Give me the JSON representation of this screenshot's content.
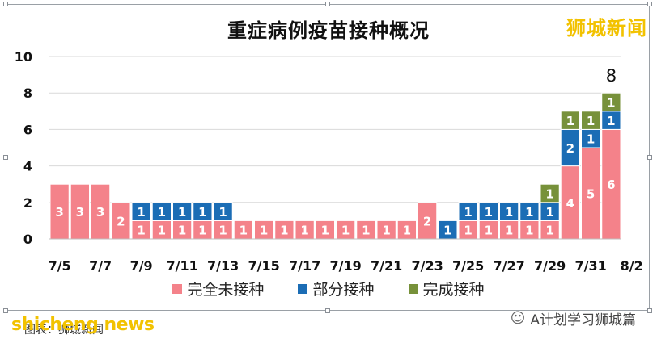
{
  "header": {
    "title": "重症病例疫苗接种概况",
    "brand": "狮城新闻"
  },
  "footer": {
    "brand_latin": "shicheng news",
    "caption": "图表：狮城新闻",
    "wechat": "A计划学习狮城篇"
  },
  "colors": {
    "unvaccinated": "#f4828a",
    "partial": "#1b6db5",
    "full": "#77913a"
  },
  "chart_data": {
    "type": "bar",
    "stacked": true,
    "title": "重症病例疫苗接种概况",
    "categories": [
      "7/5",
      "7/6",
      "7/7",
      "7/8",
      "7/9",
      "7/10",
      "7/11",
      "7/12",
      "7/13",
      "7/14",
      "7/15",
      "7/16",
      "7/17",
      "7/18",
      "7/19",
      "7/20",
      "7/21",
      "7/22",
      "7/23",
      "7/24",
      "7/25",
      "7/26",
      "7/27",
      "7/28",
      "7/29",
      "7/30",
      "7/31",
      "8/1"
    ],
    "tick_labels": [
      "7/5",
      "7/7",
      "7/9",
      "7/11",
      "7/13",
      "7/15",
      "7/17",
      "7/19",
      "7/21",
      "7/23",
      "7/25",
      "7/27",
      "7/29",
      "7/31",
      "8/2"
    ],
    "series": [
      {
        "name": "完全未接种",
        "color": "#f4828a",
        "values": [
          3,
          3,
          3,
          2,
          1,
          1,
          1,
          1,
          1,
          1,
          1,
          1,
          1,
          1,
          1,
          1,
          1,
          1,
          2,
          0,
          1,
          1,
          1,
          1,
          1,
          4,
          5,
          6
        ]
      },
      {
        "name": "部分接种",
        "color": "#1b6db5",
        "values": [
          0,
          0,
          0,
          0,
          1,
          1,
          1,
          1,
          1,
          0,
          0,
          0,
          0,
          0,
          0,
          0,
          0,
          0,
          0,
          1,
          1,
          1,
          1,
          1,
          1,
          2,
          1,
          1
        ]
      },
      {
        "name": "完成接种",
        "color": "#77913a",
        "values": [
          0,
          0,
          0,
          0,
          0,
          0,
          0,
          0,
          0,
          0,
          0,
          0,
          0,
          0,
          0,
          0,
          0,
          0,
          0,
          0,
          0,
          0,
          0,
          0,
          1,
          1,
          1,
          1
        ]
      }
    ],
    "annotations": [
      {
        "category": "8/1",
        "text": "8"
      }
    ],
    "ylim": [
      0,
      10
    ],
    "yticks": [
      0,
      2,
      4,
      6,
      8,
      10
    ],
    "grid": true,
    "legend": "bottom",
    "xlabel": "",
    "ylabel": ""
  }
}
